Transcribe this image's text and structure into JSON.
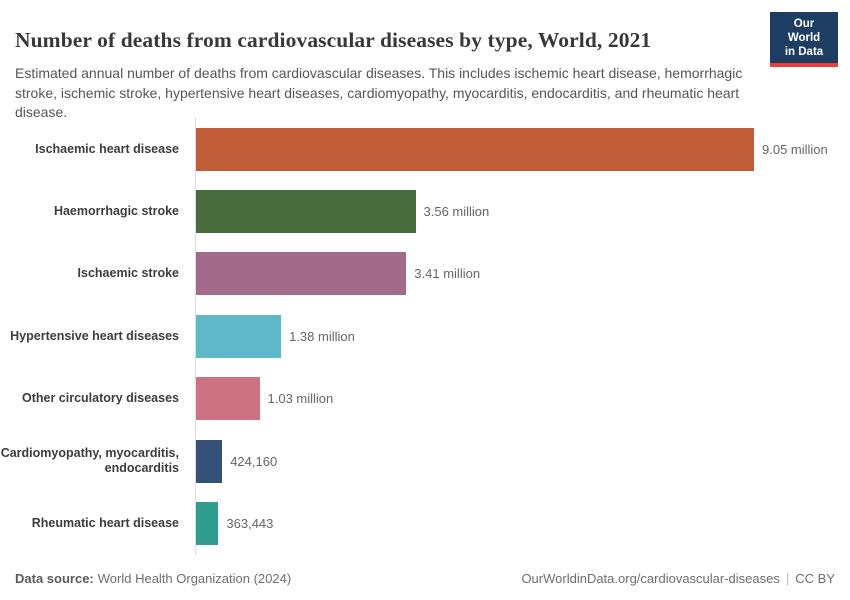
{
  "header": {
    "title": "Number of deaths from cardiovascular diseases by type, World, 2021",
    "subtitle": "Estimated annual number of deaths from cardiovascular diseases. This includes ischemic heart disease, hemorrhagic stroke, ischemic stroke, hypertensive heart diseases, cardiomyopathy, myocarditis, endocarditis, and rheumatic heart disease.",
    "logo": {
      "line1": "Our World",
      "line2": "in Data"
    }
  },
  "chart_data": {
    "type": "bar",
    "orientation": "horizontal",
    "title": "Number of deaths from cardiovascular diseases by type, World, 2021",
    "categories": [
      "Ischaemic heart disease",
      "Haemorrhagic stroke",
      "Ischaemic stroke",
      "Hypertensive heart diseases",
      "Other circulatory diseases",
      "Cardiomyopathy, myocarditis, endocarditis",
      "Rheumatic heart disease"
    ],
    "values": [
      9050000,
      3560000,
      3410000,
      1380000,
      1030000,
      424160,
      363443
    ],
    "value_labels": [
      "9.05 million",
      "3.56 million",
      "3.41 million",
      "1.38 million",
      "1.03 million",
      "424,160",
      "363,443"
    ],
    "colors": [
      "#c05c37",
      "#496c3e",
      "#a46a8a",
      "#5eb8c8",
      "#cd7282",
      "#355177",
      "#2f9d90"
    ],
    "xlim": [
      0,
      9050000
    ],
    "grid": false,
    "legend": false
  },
  "footer": {
    "datasource_label": "Data source:",
    "datasource_value": "World Health Organization (2024)",
    "link": "OurWorldinData.org/cardiovascular-diseases",
    "separator": "|",
    "license": "CC BY"
  },
  "colors": {
    "logo_bg": "#1d3d63",
    "logo_accent": "#e8403b",
    "axis": "#dddddd",
    "title_text": "#383838",
    "subtitle_text": "#555555",
    "label_text": "#3d3d3d",
    "value_text": "#666666"
  }
}
